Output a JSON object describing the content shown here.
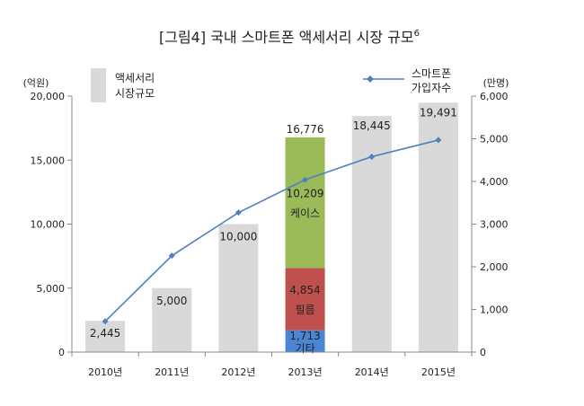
{
  "chart_data": {
    "type": "bar",
    "title": "[그림4] 국내 스마트폰 액세서리 시장 규모",
    "title_sup": "6",
    "categories": [
      "2010년",
      "2011년",
      "2012년",
      "2013년",
      "2014년",
      "2015년"
    ],
    "left_axis": {
      "unit_label": "(억원)",
      "ylim": [
        0,
        20000
      ],
      "ticks": [
        "0",
        "5,000",
        "10,000",
        "15,000",
        "20,000"
      ]
    },
    "right_axis": {
      "unit_label": "(만명)",
      "ylim": [
        0,
        6000
      ],
      "ticks": [
        "0",
        "1,000",
        "2,000",
        "3,000",
        "4,000",
        "5,000",
        "6,000"
      ]
    },
    "bars": {
      "name": "액세서리 시장규모",
      "legend_lines": [
        "액세서리",
        "시장규모"
      ],
      "values": [
        2445,
        5000,
        10000,
        16776,
        18445,
        19491
      ],
      "labels": [
        "2,445",
        "5,000",
        "10,000",
        "16,776",
        "18,445",
        "19,491"
      ],
      "color": "#d9d9d9"
    },
    "stack_2013": [
      {
        "name": "기타",
        "value": 1713,
        "label": "1,713",
        "color": "#4a86d4"
      },
      {
        "name": "필름",
        "value": 4854,
        "label": "4,854",
        "color": "#c0504d"
      },
      {
        "name": "케이스",
        "value": 10209,
        "label": "10,209",
        "color": "#9bbb59"
      }
    ],
    "line": {
      "name": "스마트폰 가입자수",
      "legend_lines": [
        "스마트폰",
        "가입자수"
      ],
      "values": [
        720,
        2260,
        3270,
        4040,
        4580,
        4970
      ],
      "color": "#4f81bd"
    }
  }
}
